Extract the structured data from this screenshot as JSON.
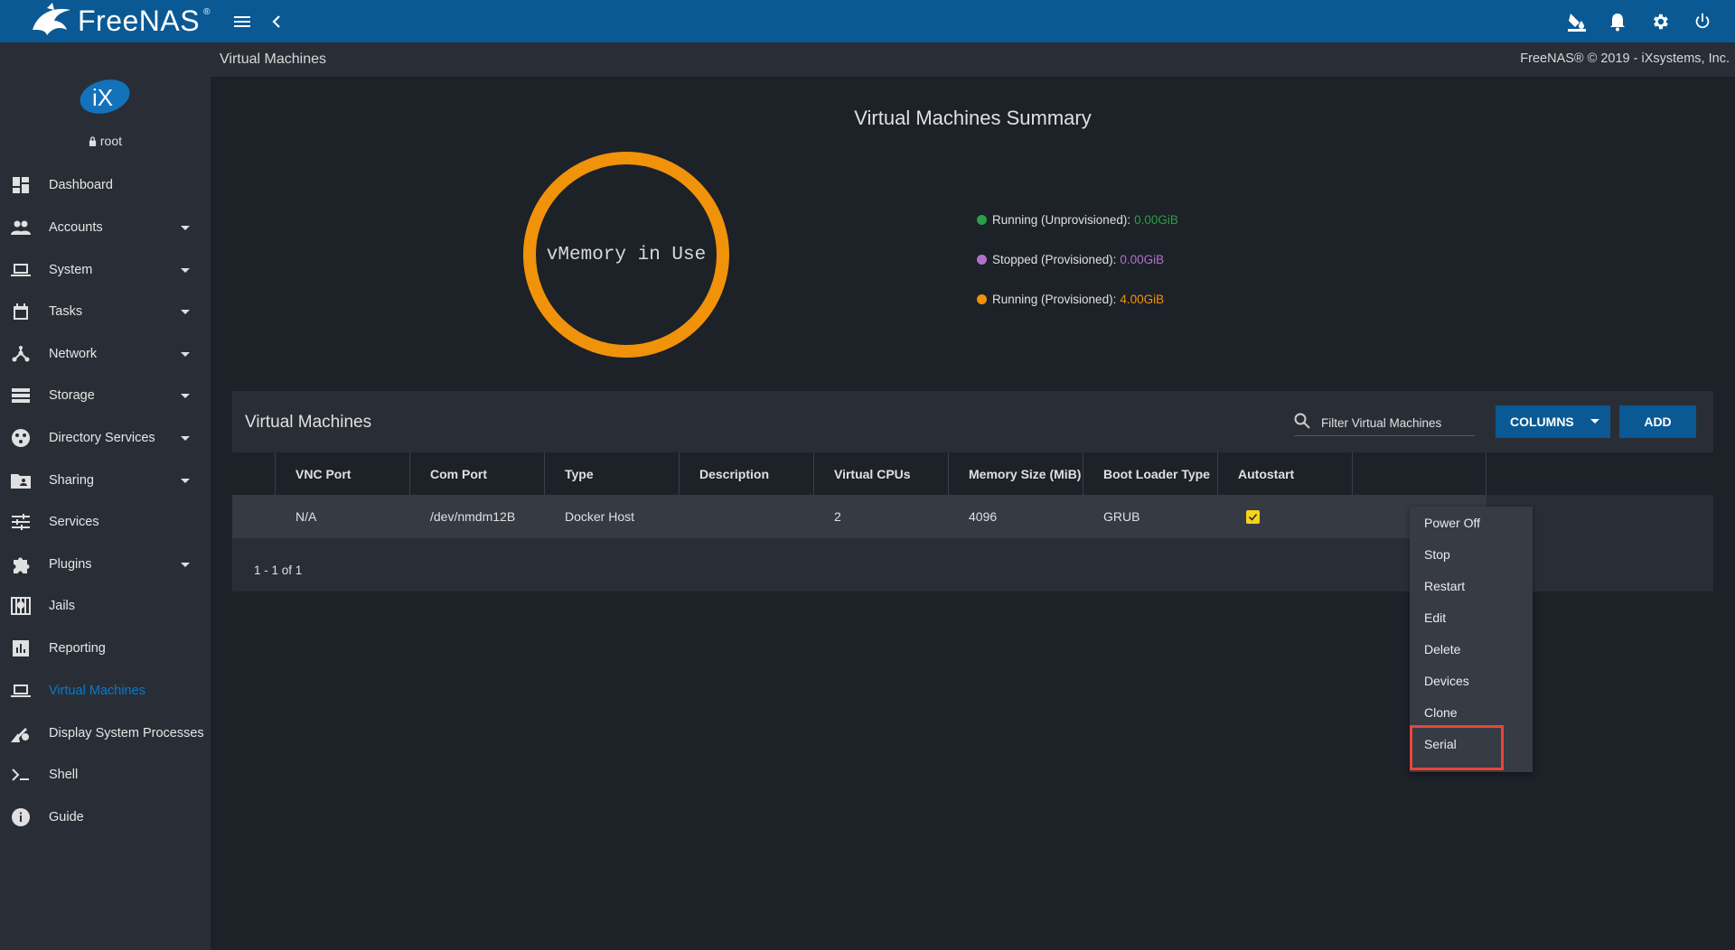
{
  "topbar": {
    "app_name": "FreeNAS",
    "reg_mark": "®",
    "icons": [
      "menu-icon",
      "chevron-left-icon",
      "theme-icon",
      "bell-icon",
      "gear-icon",
      "power-icon"
    ]
  },
  "breadcrumb": "Virtual Machines",
  "copyright": "FreeNAS® © 2019 - iXsystems, Inc.",
  "sidebar": {
    "user": "root",
    "items": [
      {
        "label": "Dashboard",
        "icon": "dashboard-icon",
        "expandable": false
      },
      {
        "label": "Accounts",
        "icon": "people-icon",
        "expandable": true
      },
      {
        "label": "System",
        "icon": "laptop-icon",
        "expandable": true
      },
      {
        "label": "Tasks",
        "icon": "calendar-icon",
        "expandable": true
      },
      {
        "label": "Network",
        "icon": "network-icon",
        "expandable": true
      },
      {
        "label": "Storage",
        "icon": "storage-icon",
        "expandable": true
      },
      {
        "label": "Directory Services",
        "icon": "directory-icon",
        "expandable": true
      },
      {
        "label": "Sharing",
        "icon": "folder-share-icon",
        "expandable": true
      },
      {
        "label": "Services",
        "icon": "tune-icon",
        "expandable": false
      },
      {
        "label": "Plugins",
        "icon": "puzzle-icon",
        "expandable": true
      },
      {
        "label": "Jails",
        "icon": "jail-icon",
        "expandable": false
      },
      {
        "label": "Reporting",
        "icon": "chart-icon",
        "expandable": false
      },
      {
        "label": "Virtual Machines",
        "icon": "laptop-icon",
        "expandable": false,
        "active": true
      },
      {
        "label": "Display System Processes",
        "icon": "processes-icon",
        "expandable": false
      },
      {
        "label": "Shell",
        "icon": "terminal-icon",
        "expandable": false
      },
      {
        "label": "Guide",
        "icon": "info-icon",
        "expandable": false
      }
    ]
  },
  "summary": {
    "title": "Virtual Machines Summary",
    "donut_label": "vMemory in Use",
    "legend": [
      {
        "label": "Running (Unprovisioned):",
        "value": "0.00GiB",
        "color": "#27a046"
      },
      {
        "label": "Stopped (Provisioned):",
        "value": "0.00GiB",
        "color": "#b072c8"
      },
      {
        "label": "Running (Provisioned):",
        "value": "4.00GiB",
        "color": "#f0920a"
      }
    ]
  },
  "vm_table": {
    "title": "Virtual Machines",
    "filter_placeholder": "Filter Virtual Machines",
    "columns_button": "COLUMNS",
    "add_button": "ADD",
    "headers": [
      "VNC Port",
      "Com Port",
      "Type",
      "Description",
      "Virtual CPUs",
      "Memory Size (MiB)",
      "Boot Loader Type",
      "Autostart"
    ],
    "rows": [
      {
        "vnc_port": "N/A",
        "com_port": "/dev/nmdm12B",
        "type": "Docker Host",
        "description": "",
        "vcpus": "2",
        "memory": "4096",
        "boot_loader": "GRUB",
        "autostart": true
      }
    ],
    "pager": "1 - 1 of 1"
  },
  "context_menu": {
    "items": [
      "Power Off",
      "Stop",
      "Restart",
      "Edit",
      "Delete",
      "Devices",
      "Clone",
      "Serial"
    ],
    "highlighted": "Serial"
  }
}
